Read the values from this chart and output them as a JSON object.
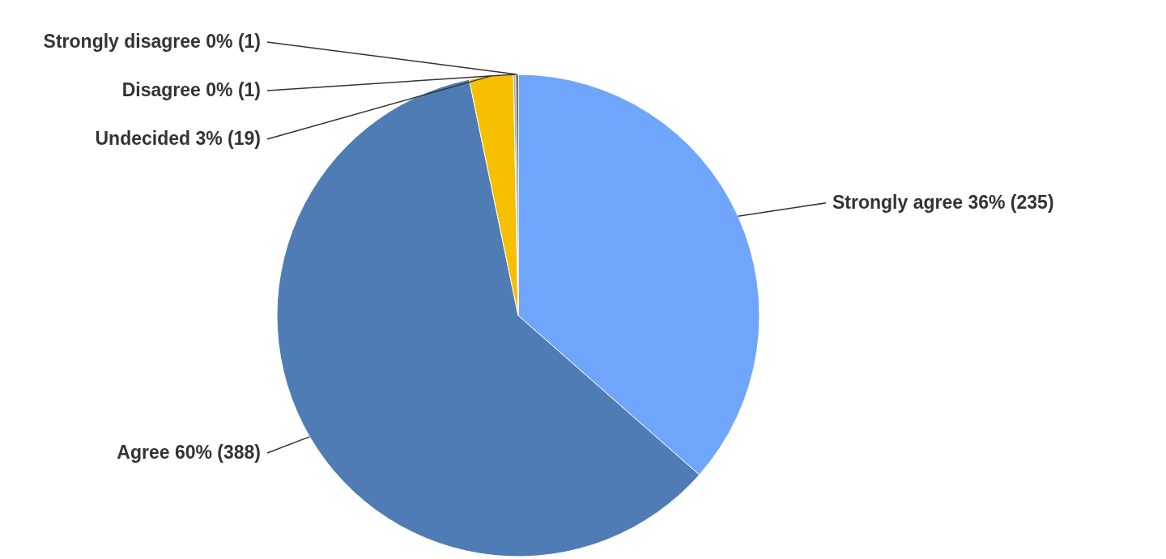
{
  "chart_data": {
    "type": "pie",
    "categories": [
      "Strongly agree",
      "Agree",
      "Undecided",
      "Disagree",
      "Strongly disagree"
    ],
    "values": [
      235,
      388,
      19,
      1,
      1
    ],
    "value_labels": [
      "36% (235)",
      "60% (388)",
      "3% (19)",
      "0% (1)",
      "0% (1)"
    ],
    "colors": [
      "#6fa6fb",
      "#4f7cb5",
      "#f6bf00",
      "#a8a8a8",
      "#333333"
    ]
  }
}
